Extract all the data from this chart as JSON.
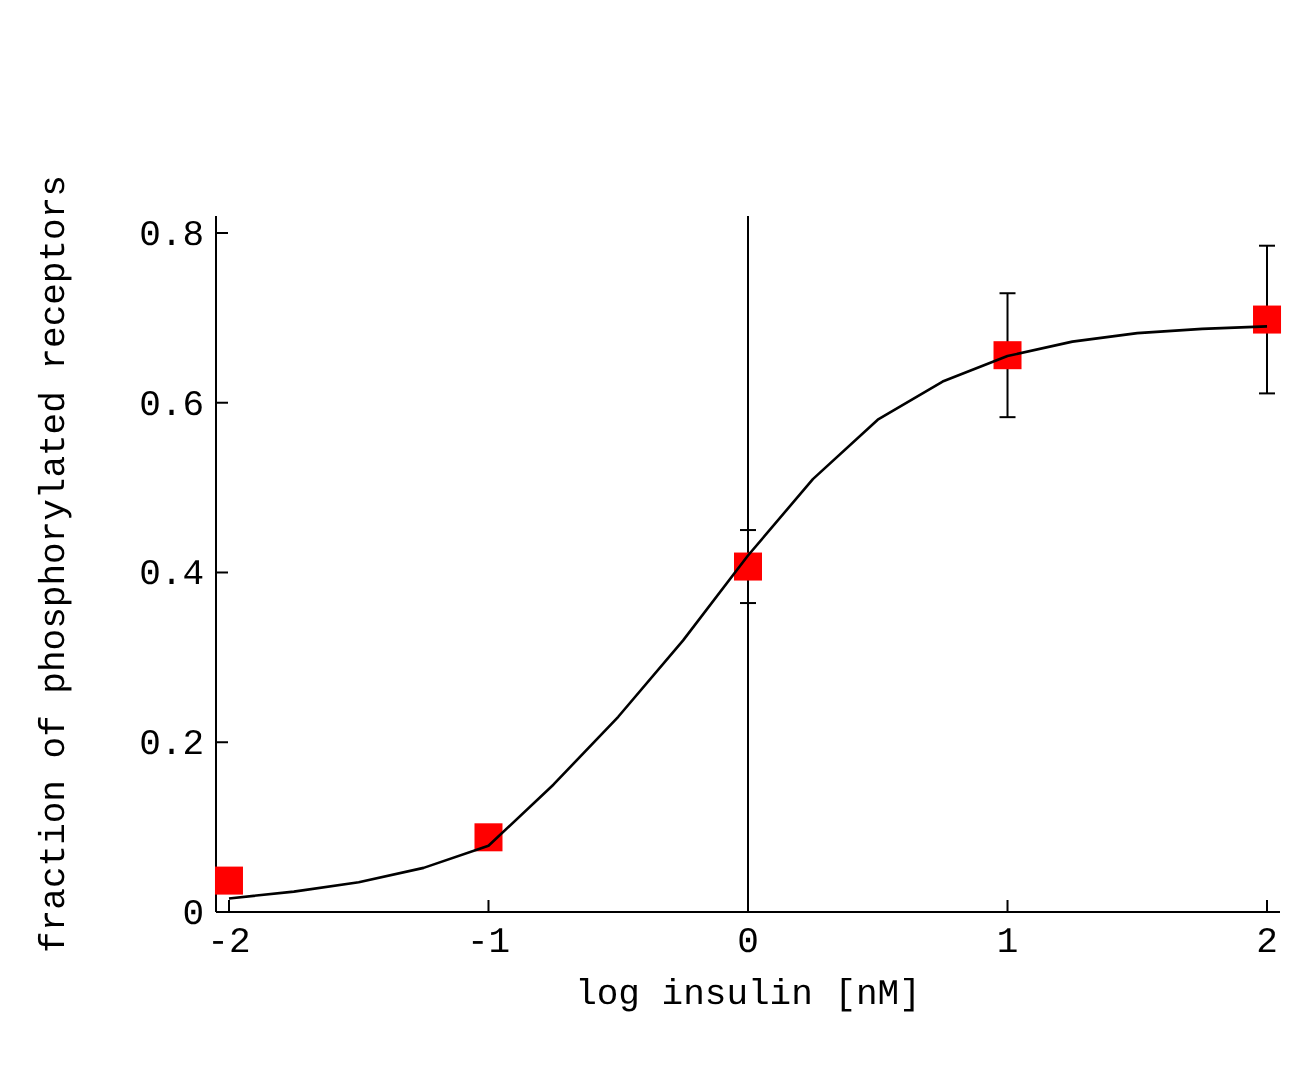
{
  "chart_data": {
    "type": "scatter",
    "xlabel": "log insulin [nM]",
    "ylabel": "fraction of phosphorylated receptors",
    "xlim": [
      -2.05,
      2.05
    ],
    "ylim": [
      0,
      0.82
    ],
    "xticks": [
      -2,
      -1,
      0,
      1,
      2
    ],
    "yticks": [
      0,
      0.2,
      0.4,
      0.6,
      0.8
    ],
    "grid": false,
    "ref_lines": [
      {
        "axis": "x",
        "value": 0,
        "color": "#000000"
      }
    ],
    "series": [
      {
        "color": "#ff0000",
        "marker": "square",
        "x": [
          -2,
          -1,
          0,
          1,
          2
        ],
        "values": [
          0.037,
          0.088,
          0.407,
          0.656,
          0.698
        ],
        "errors": [
          null,
          null,
          0.043,
          0.073,
          0.087
        ]
      },
      {
        "type": "line",
        "color": "#000000",
        "line_style": "solid",
        "marker": "none",
        "x": [
          -2,
          -1.75,
          -1.5,
          -1.25,
          -1,
          -0.75,
          -0.5,
          -0.25,
          0,
          0.25,
          0.5,
          0.75,
          1,
          1.25,
          1.5,
          1.75,
          2
        ],
        "values": [
          0.016,
          0.024,
          0.035,
          0.052,
          0.078,
          0.15,
          0.23,
          0.32,
          0.42,
          0.51,
          0.58,
          0.625,
          0.655,
          0.672,
          0.682,
          0.687,
          0.69
        ]
      }
    ]
  }
}
